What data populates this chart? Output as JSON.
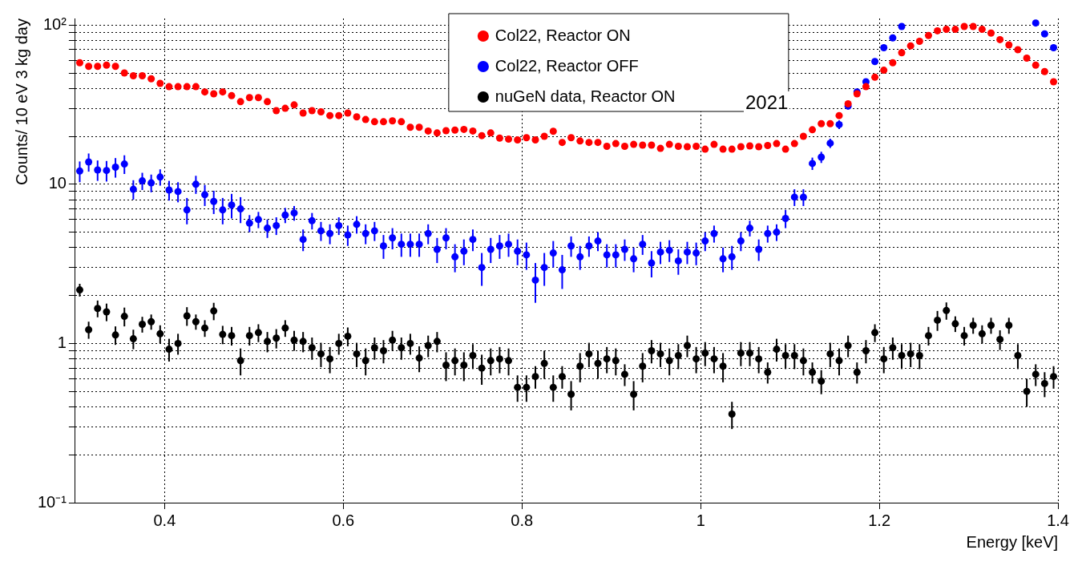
{
  "chart_data": {
    "type": "scatter",
    "xlabel": "Energy [keV]",
    "ylabel": "Counts/ 10 eV 3 kg day",
    "annotations": [
      "2021"
    ],
    "x": [
      0.305,
      0.315,
      0.325,
      0.335,
      0.345,
      0.355,
      0.365,
      0.375,
      0.385,
      0.395,
      0.405,
      0.415,
      0.425,
      0.435,
      0.445,
      0.455,
      0.465,
      0.475,
      0.485,
      0.495,
      0.505,
      0.515,
      0.525,
      0.535,
      0.545,
      0.555,
      0.565,
      0.575,
      0.585,
      0.595,
      0.605,
      0.615,
      0.625,
      0.635,
      0.645,
      0.655,
      0.665,
      0.675,
      0.685,
      0.695,
      0.705,
      0.715,
      0.725,
      0.735,
      0.745,
      0.755,
      0.765,
      0.775,
      0.785,
      0.795,
      0.805,
      0.815,
      0.825,
      0.835,
      0.845,
      0.855,
      0.865,
      0.875,
      0.885,
      0.895,
      0.905,
      0.915,
      0.925,
      0.935,
      0.945,
      0.955,
      0.965,
      0.975,
      0.985,
      0.995,
      1.005,
      1.015,
      1.025,
      1.035,
      1.045,
      1.055,
      1.065,
      1.075,
      1.085,
      1.095,
      1.105,
      1.115,
      1.125,
      1.135,
      1.145,
      1.155,
      1.165,
      1.175,
      1.185,
      1.195,
      1.205,
      1.215,
      1.225,
      1.235,
      1.245,
      1.255,
      1.265,
      1.275,
      1.285,
      1.295,
      1.305,
      1.315,
      1.325,
      1.335,
      1.345,
      1.355,
      1.365,
      1.375,
      1.385,
      1.395
    ],
    "series": [
      {
        "name": "Col22, Reactor ON",
        "color": "#ff0000",
        "values": [
          58,
          55,
          55,
          56,
          55,
          50,
          48,
          48,
          46,
          43,
          41,
          41,
          41,
          41,
          38,
          37,
          38,
          36,
          33,
          35,
          35,
          33,
          29,
          30,
          31.5,
          28,
          29,
          28.5,
          27,
          27,
          28,
          26.5,
          25.5,
          24.7,
          24.7,
          25,
          24.7,
          22.8,
          22.8,
          21.6,
          21,
          21.7,
          21.9,
          22.1,
          21.6,
          20.2,
          21,
          19.5,
          19.2,
          19,
          19.6,
          19,
          20,
          21.5,
          18.3,
          19.6,
          18.7,
          18.3,
          18.3,
          17.3,
          18,
          17.3,
          17.8,
          17.6,
          17.6,
          16.8,
          17.8,
          17.3,
          17.2,
          17.3,
          16.6,
          17.8,
          16.6,
          16.6,
          17.2,
          17.4,
          17.2,
          17.5,
          18,
          16.6,
          18,
          20,
          22,
          24,
          24,
          27,
          32,
          37,
          41,
          47,
          52,
          58,
          67,
          74,
          79,
          86,
          92,
          94,
          94,
          98,
          98,
          94,
          89,
          81,
          75,
          70,
          62,
          56,
          51,
          44
        ]
      },
      {
        "name": "Col22, Reactor OFF",
        "color": "#0000ff",
        "values": [
          12.1,
          13.8,
          12.3,
          12.2,
          12.8,
          13.4,
          9.3,
          10.5,
          10.2,
          11.1,
          9.2,
          9.0,
          6.9,
          10,
          8.6,
          7.8,
          6.9,
          7.4,
          7.0,
          5.7,
          6.0,
          5.3,
          5.5,
          6.4,
          6.6,
          4.5,
          5.9,
          5.1,
          4.9,
          5.5,
          4.8,
          5.6,
          4.9,
          5.1,
          4.1,
          4.6,
          4.2,
          4.2,
          4.2,
          4.9,
          3.9,
          4.6,
          3.5,
          3.8,
          4.5,
          3.0,
          3.9,
          4.1,
          4.2,
          3.8,
          3.6,
          2.5,
          3.0,
          3.7,
          2.9,
          4.1,
          3.5,
          4.1,
          4.4,
          3.6,
          3.6,
          3.9,
          3.4,
          4.2,
          3.2,
          3.75,
          3.85,
          3.3,
          3.75,
          3.7,
          4.4,
          4.9,
          3.4,
          3.5,
          4.4,
          5.3,
          3.9,
          4.9,
          5.0,
          6.1,
          8.3,
          8.3,
          13.5,
          14.8,
          18.1,
          23.7,
          31,
          38,
          44,
          59,
          72,
          83,
          98,
          null,
          null,
          null,
          null,
          null,
          null,
          null,
          null,
          null,
          null,
          null,
          null,
          null,
          null,
          103,
          88,
          72
        ],
        "errors": [
          1.8,
          1.8,
          1.8,
          1.8,
          1.8,
          1.8,
          1.3,
          1.3,
          1.3,
          1.3,
          1.3,
          1.3,
          1.3,
          1.3,
          1.3,
          1.3,
          1.3,
          1.3,
          1.3,
          0.7,
          0.7,
          0.7,
          0.7,
          0.7,
          0.7,
          0.7,
          0.7,
          0.7,
          0.7,
          0.7,
          0.7,
          0.7,
          0.7,
          0.7,
          0.7,
          0.7,
          0.7,
          0.7,
          0.7,
          0.7,
          0.7,
          0.7,
          0.7,
          0.7,
          0.7,
          0.7,
          0.7,
          0.7,
          0.7,
          0.7,
          0.7,
          0.7,
          0.7,
          0.7,
          0.7,
          0.6,
          0.6,
          0.6,
          0.6,
          0.6,
          0.6,
          0.6,
          0.6,
          0.6,
          0.6,
          0.6,
          0.6,
          0.6,
          0.6,
          0.6,
          0.6,
          0.6,
          0.6,
          0.6,
          0.6,
          0.6,
          0.6,
          0.6,
          0.6,
          0.8,
          1.0,
          1.0,
          1.2,
          1.2,
          1.2,
          1.5,
          1.5,
          1.5,
          1.5,
          1.5,
          1.5,
          1.5,
          1.5,
          null,
          null,
          null,
          null,
          null,
          null,
          null,
          null,
          null,
          null,
          null,
          null,
          null,
          null,
          3,
          3,
          3
        ]
      },
      {
        "name": "nuGeN data, Reactor ON",
        "color": "#000000",
        "values": [
          2.17,
          1.22,
          1.66,
          1.58,
          1.13,
          1.48,
          1.07,
          1.32,
          1.37,
          1.15,
          0.92,
          1.0,
          1.49,
          1.37,
          1.25,
          1.6,
          1.14,
          1.12,
          0.78,
          1.12,
          1.17,
          1.03,
          1.08,
          1.25,
          1.05,
          1.03,
          0.94,
          0.86,
          0.8,
          1.0,
          1.11,
          0.86,
          0.78,
          0.94,
          0.9,
          1.05,
          0.94,
          1.0,
          0.81,
          0.97,
          1.03,
          0.73,
          0.78,
          0.73,
          0.84,
          0.7,
          0.78,
          0.8,
          0.78,
          0.53,
          0.53,
          0.62,
          0.75,
          0.53,
          0.62,
          0.48,
          0.72,
          0.86,
          0.75,
          0.8,
          0.78,
          0.64,
          0.48,
          0.72,
          0.9,
          0.86,
          0.78,
          0.84,
          0.97,
          0.8,
          0.87,
          0.8,
          0.72,
          0.36,
          0.87,
          0.87,
          0.8,
          0.66,
          0.92,
          0.84,
          0.84,
          0.78,
          0.66,
          0.58,
          0.86,
          0.78,
          0.97,
          0.66,
          0.9,
          1.17,
          0.8,
          0.94,
          0.84,
          0.86,
          0.84,
          1.12,
          1.4,
          1.61,
          1.33,
          1.12,
          1.3,
          1.15,
          1.3,
          1.06,
          1.3,
          0.84,
          0.5,
          0.64,
          0.56,
          0.62
        ],
        "errors": [
          0.2,
          0.15,
          0.2,
          0.2,
          0.15,
          0.2,
          0.15,
          0.15,
          0.15,
          0.15,
          0.15,
          0.15,
          0.2,
          0.15,
          0.15,
          0.2,
          0.15,
          0.15,
          0.15,
          0.15,
          0.15,
          0.15,
          0.15,
          0.15,
          0.15,
          0.15,
          0.15,
          0.15,
          0.15,
          0.15,
          0.15,
          0.15,
          0.15,
          0.15,
          0.15,
          0.15,
          0.15,
          0.15,
          0.15,
          0.15,
          0.15,
          0.15,
          0.15,
          0.15,
          0.15,
          0.15,
          0.15,
          0.15,
          0.15,
          0.1,
          0.1,
          0.1,
          0.15,
          0.1,
          0.1,
          0.1,
          0.15,
          0.15,
          0.15,
          0.15,
          0.15,
          0.1,
          0.1,
          0.15,
          0.15,
          0.15,
          0.15,
          0.15,
          0.15,
          0.15,
          0.15,
          0.15,
          0.15,
          0.07,
          0.15,
          0.15,
          0.15,
          0.1,
          0.15,
          0.15,
          0.15,
          0.15,
          0.1,
          0.1,
          0.15,
          0.15,
          0.15,
          0.1,
          0.15,
          0.15,
          0.15,
          0.15,
          0.15,
          0.15,
          0.15,
          0.15,
          0.2,
          0.2,
          0.15,
          0.15,
          0.15,
          0.15,
          0.15,
          0.15,
          0.15,
          0.15,
          0.1,
          0.1,
          0.1,
          0.1
        ]
      }
    ],
    "xlim": [
      0.3,
      1.4
    ],
    "xticks": [
      0.4,
      0.6,
      0.8,
      1,
      1.2,
      1.4
    ],
    "ylim": [
      0.1,
      110
    ],
    "yticks": [
      {
        "value": 0.1,
        "label": "10⁻¹"
      },
      {
        "value": 0.2,
        "label": null
      },
      {
        "value": 0.3,
        "label": null
      },
      {
        "value": 0.4,
        "label": null
      },
      {
        "value": 0.5,
        "label": null
      },
      {
        "value": 0.6,
        "label": null
      },
      {
        "value": 0.7,
        "label": null
      },
      {
        "value": 0.8,
        "label": null
      },
      {
        "value": 0.9,
        "label": null
      },
      1,
      {
        "value": 2,
        "label": null
      },
      {
        "value": 3,
        "label": null
      },
      {
        "value": 4,
        "label": null
      },
      {
        "value": 5,
        "label": null
      },
      {
        "value": 6,
        "label": null
      },
      {
        "value": 7,
        "label": null
      },
      {
        "value": 8,
        "label": null
      },
      {
        "value": 9,
        "label": null
      },
      10,
      {
        "value": 20,
        "label": null
      },
      {
        "value": 30,
        "label": null
      },
      {
        "value": 40,
        "label": null
      },
      {
        "value": 50,
        "label": null
      },
      {
        "value": 60,
        "label": null
      },
      {
        "value": 70,
        "label": null
      },
      {
        "value": 80,
        "label": null
      },
      {
        "value": 90,
        "label": null
      },
      {
        "value": 100,
        "label": "10²"
      }
    ],
    "log": "y",
    "grid": true,
    "legend": "top",
    "marker": "circle"
  }
}
